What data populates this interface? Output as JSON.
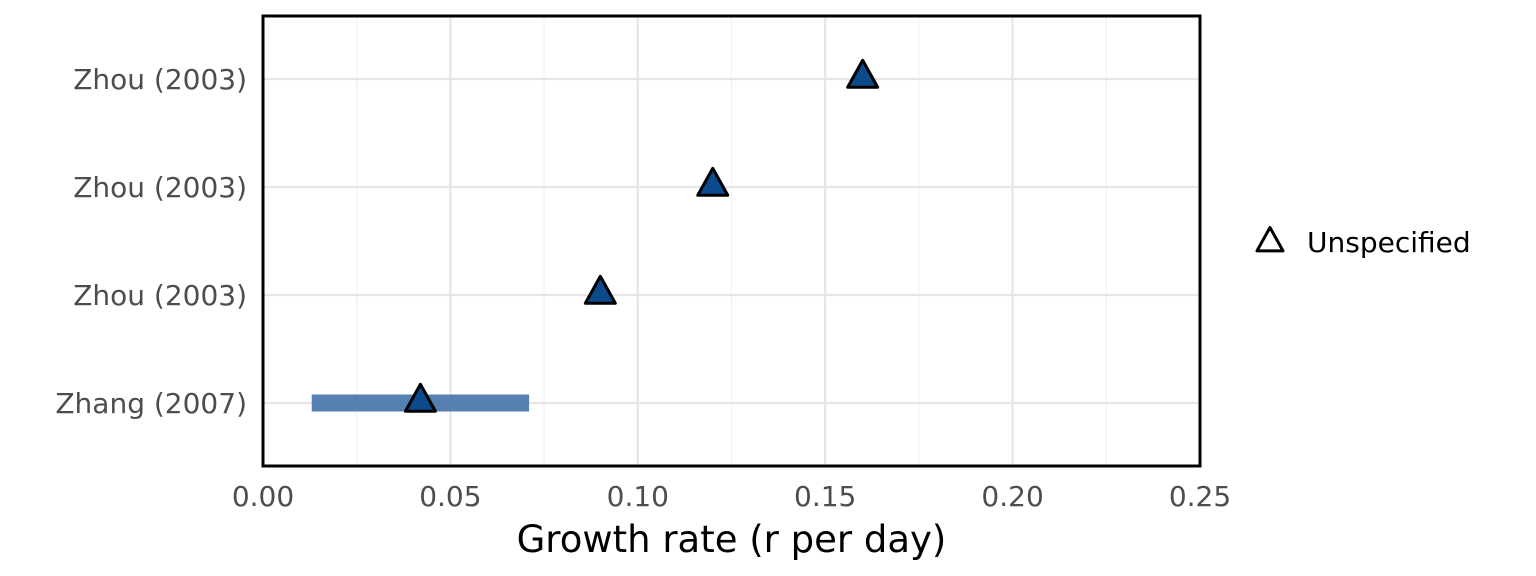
{
  "chart_data": {
    "type": "scatter",
    "title": "",
    "xlabel": "Growth rate (r per day)",
    "ylabel": "",
    "xlim": [
      0,
      0.25
    ],
    "xticks": [
      "0.00",
      "0.05",
      "0.10",
      "0.15",
      "0.20",
      "0.25"
    ],
    "grid": true,
    "legend_position": "right",
    "legend": [
      {
        "label": "Unspecified",
        "marker": "triangle"
      }
    ],
    "colors": {
      "marker_fill": "#0b4a8b",
      "interval_bar": "#5580b0",
      "marker_stroke": "#000000"
    },
    "rows": [
      {
        "label": "Zhou (2003)",
        "value": 0.16,
        "interval": null
      },
      {
        "label": "Zhou (2003)",
        "value": 0.12,
        "interval": null
      },
      {
        "label": "Zhou (2003)",
        "value": 0.09,
        "interval": null
      },
      {
        "label": "Zhang (2007)",
        "value": 0.042,
        "interval": [
          0.013,
          0.071
        ]
      }
    ]
  }
}
